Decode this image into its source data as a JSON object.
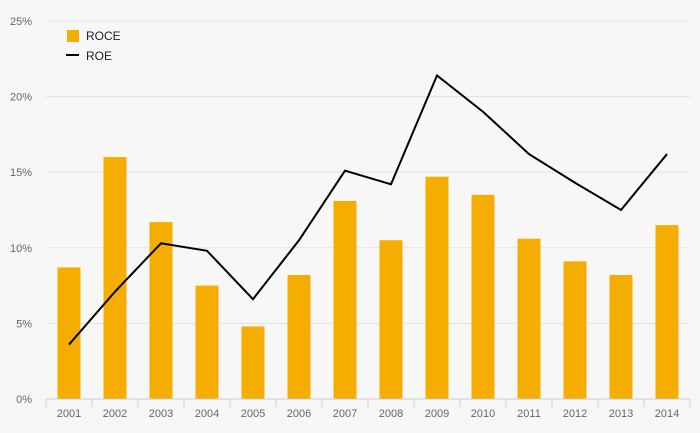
{
  "chart_data": {
    "type": "bar",
    "categories": [
      "2001",
      "2002",
      "2003",
      "2004",
      "2005",
      "2006",
      "2007",
      "2008",
      "2009",
      "2010",
      "2011",
      "2012",
      "2013",
      "2014"
    ],
    "series": [
      {
        "name": "ROCE",
        "type": "bar",
        "color": "#f5ad00",
        "values": [
          8.7,
          16.0,
          11.7,
          7.5,
          4.8,
          8.2,
          13.1,
          10.5,
          14.7,
          13.5,
          10.6,
          9.1,
          8.2,
          11.5
        ]
      },
      {
        "name": "ROE",
        "type": "line",
        "color": "#000000",
        "values": [
          3.6,
          7.1,
          10.3,
          9.8,
          6.6,
          10.5,
          15.1,
          14.2,
          21.4,
          19.0,
          16.2,
          14.3,
          12.5,
          16.2
        ]
      }
    ],
    "ylim": [
      0,
      25
    ],
    "yticks": [
      "0%",
      "5%",
      "10%",
      "15%",
      "20%",
      "25%"
    ],
    "ytick_values": [
      0,
      5,
      10,
      15,
      20,
      25
    ],
    "grid": true,
    "legend_position": "top-left"
  }
}
